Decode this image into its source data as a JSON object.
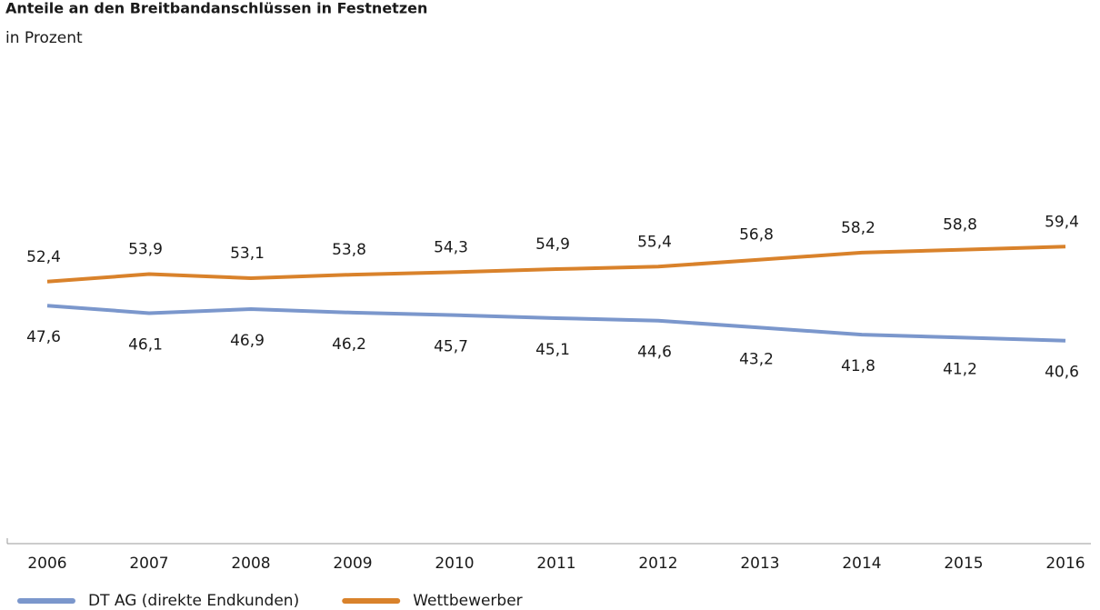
{
  "chart_data": {
    "type": "line",
    "title": "Anteile an den Breitbandanschlüssen in Festnetzen",
    "subtitle": "in Prozent",
    "categories": [
      "2006",
      "2007",
      "2008",
      "2009",
      "2010",
      "2011",
      "2012",
      "2013",
      "2014",
      "2015",
      "2016"
    ],
    "ylim": [
      0,
      100
    ],
    "series": [
      {
        "name": "DT AG (direkte Endkunden)",
        "color": "#7b97cc",
        "values": [
          47.6,
          46.1,
          46.9,
          46.2,
          45.7,
          45.1,
          44.6,
          43.2,
          41.8,
          41.2,
          40.6
        ],
        "value_labels": [
          "47,6",
          "46,1",
          "46,9",
          "46,2",
          "45,7",
          "45,1",
          "44,6",
          "43,2",
          "41,8",
          "41,2",
          "40,6"
        ]
      },
      {
        "name": "Wettbewerber",
        "color": "#d9822b",
        "values": [
          52.4,
          53.9,
          53.1,
          53.8,
          54.3,
          54.9,
          55.4,
          56.8,
          58.2,
          58.8,
          59.4
        ],
        "value_labels": [
          "52,4",
          "53,9",
          "53,1",
          "53,8",
          "54,3",
          "54,9",
          "55,4",
          "56,8",
          "58,2",
          "58,8",
          "59,4"
        ]
      }
    ],
    "legend": "bottom-left"
  }
}
